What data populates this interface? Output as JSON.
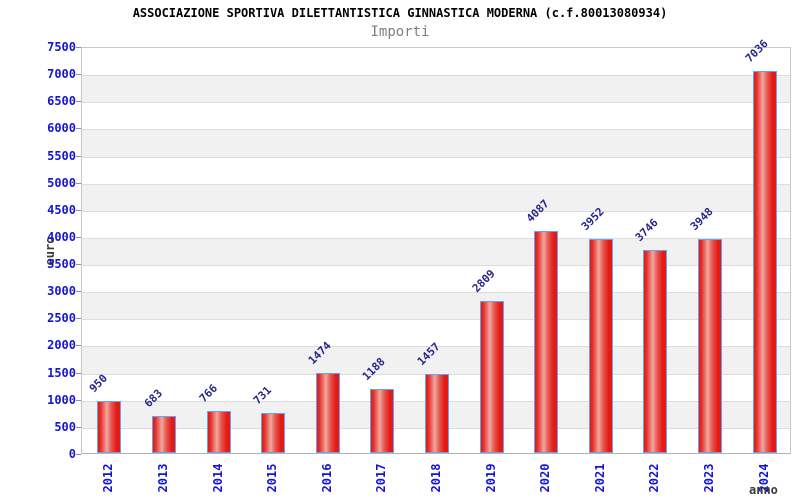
{
  "chart_data": {
    "type": "bar",
    "title": "ASSOCIAZIONE SPORTIVA DILETTANTISTICA GINNASTICA MODERNA (c.f.80013080934)",
    "subtitle": "Importi",
    "xlabel": "anno",
    "ylabel": "euro",
    "categories": [
      "2012",
      "2013",
      "2014",
      "2015",
      "2016",
      "2017",
      "2018",
      "2019",
      "2020",
      "2021",
      "2022",
      "2023",
      "2024"
    ],
    "values": [
      950,
      683,
      766,
      731,
      1474,
      1188,
      1457,
      2809,
      4087,
      3952,
      3746,
      3948,
      7036
    ],
    "ylim": [
      0,
      7500
    ],
    "ytick_step": 500,
    "grid": "horizontal-bands",
    "legend": "none",
    "colors": {
      "bar_fill": "#e31a16",
      "bar_highlight": "#f0a8a0",
      "bar_border": "#66a3f2",
      "value_label": "#26268c",
      "tick_label": "#1515d6",
      "band_alt": "#f1f1f1",
      "gridline": "#dcdcdc",
      "plot_border": "#c8c8c8",
      "title": "#000000",
      "subtitle": "#7f7f7f",
      "axis_title": "#3a3a3a",
      "background": "#ffffff"
    }
  }
}
